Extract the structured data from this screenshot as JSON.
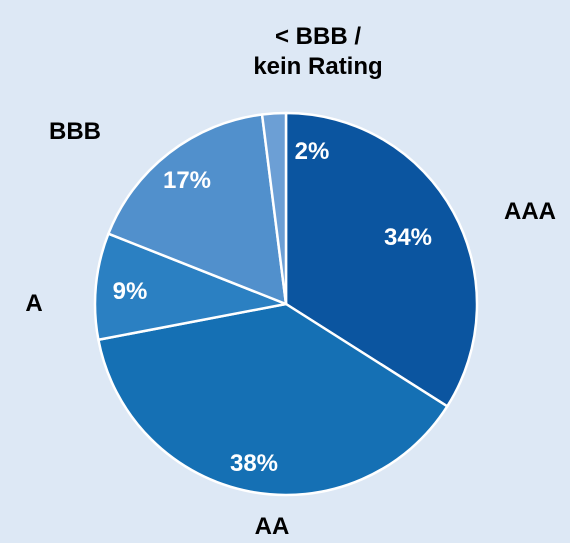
{
  "chart_data": {
    "type": "pie",
    "categories": [
      "AAA",
      "AA",
      "A",
      "BBB",
      "< BBB /\nkein Rating"
    ],
    "values": [
      34,
      38,
      9,
      17,
      2
    ],
    "value_labels": [
      "34%",
      "38%",
      "9%",
      "17%",
      "2%"
    ],
    "colors": [
      "#0b55a0",
      "#1570b4",
      "#2b80c2",
      "#5190cc",
      "#6c9fd5"
    ]
  }
}
